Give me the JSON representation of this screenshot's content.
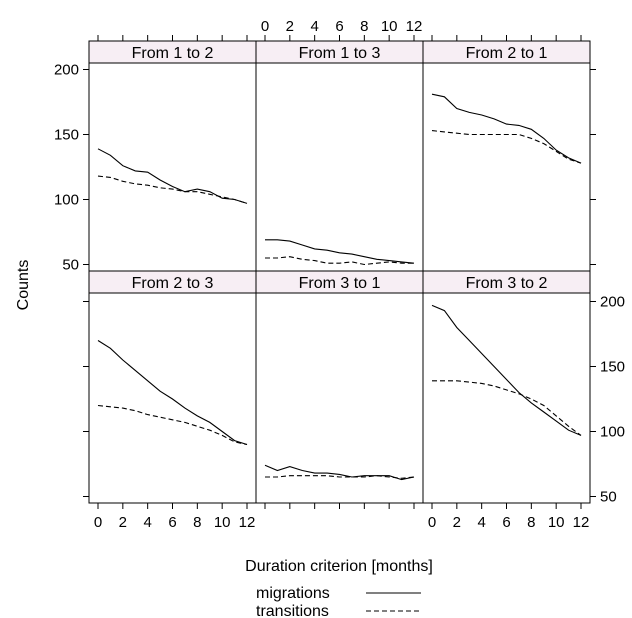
{
  "chart_data": {
    "type": "line",
    "layout": "3 columns x 2 rows lattice (trellis) plot",
    "xlabel": "Duration criterion [months]",
    "ylabel": "Counts",
    "xlim": [
      0,
      12
    ],
    "ylim": [
      45,
      205
    ],
    "x_ticks": [
      0,
      2,
      4,
      6,
      8,
      10,
      12
    ],
    "y_ticks": [
      50,
      100,
      150,
      200
    ],
    "grid": false,
    "legend": {
      "placement": "bottom-center",
      "entries": [
        {
          "name": "migrations",
          "line_style": "solid"
        },
        {
          "name": "transitions",
          "line_style": "dashed"
        }
      ]
    },
    "x": [
      0,
      1,
      2,
      3,
      4,
      5,
      6,
      7,
      8,
      9,
      10,
      11,
      12
    ],
    "panels": [
      {
        "title": "From 1 to 2",
        "series": [
          {
            "name": "migrations",
            "values": [
              139,
              134,
              126,
              122,
              121,
              115,
              110,
              106,
              108,
              106,
              101,
              100,
              97
            ]
          },
          {
            "name": "transitions",
            "values": [
              118,
              117,
              114,
              112,
              111,
              109,
              108,
              106,
              106,
              104,
              102,
              100,
              97
            ]
          }
        ]
      },
      {
        "title": "From 1 to 3",
        "series": [
          {
            "name": "migrations",
            "values": [
              69,
              69,
              68,
              65,
              62,
              61,
              59,
              58,
              56,
              54,
              53,
              52,
              51
            ]
          },
          {
            "name": "transitions",
            "values": [
              55,
              55,
              56,
              54,
              53,
              51,
              51,
              52,
              50,
              51,
              52,
              51,
              51
            ]
          }
        ]
      },
      {
        "title": "From 2 to 1",
        "series": [
          {
            "name": "migrations",
            "values": [
              181,
              179,
              170,
              167,
              165,
              162,
              158,
              157,
              154,
              147,
              138,
              132,
              128
            ]
          },
          {
            "name": "transitions",
            "values": [
              153,
              152,
              151,
              150,
              150,
              150,
              150,
              150,
              147,
              143,
              137,
              131,
              128
            ]
          }
        ]
      },
      {
        "title": "From 2 to 3",
        "series": [
          {
            "name": "migrations",
            "values": [
              170,
              164,
              155,
              147,
              139,
              131,
              125,
              118,
              112,
              107,
              100,
              93,
              90
            ]
          },
          {
            "name": "transitions",
            "values": [
              120,
              119,
              118,
              116,
              113,
              111,
              109,
              107,
              104,
              101,
              97,
              92,
              90
            ]
          }
        ]
      },
      {
        "title": "From 3 to 1",
        "series": [
          {
            "name": "migrations",
            "values": [
              74,
              70,
              73,
              70,
              68,
              68,
              67,
              65,
              66,
              66,
              66,
              63,
              65
            ]
          },
          {
            "name": "transitions",
            "values": [
              65,
              65,
              66,
              66,
              66,
              66,
              65,
              65,
              65,
              66,
              65,
              64,
              65
            ]
          }
        ]
      },
      {
        "title": "From 3 to 2",
        "series": [
          {
            "name": "migrations",
            "values": [
              197,
              193,
              180,
              170,
              160,
              150,
              140,
              130,
              122,
              115,
              108,
              101,
              97
            ]
          },
          {
            "name": "transitions",
            "values": [
              139,
              139,
              139,
              138,
              137,
              135,
              132,
              129,
              125,
              120,
              112,
              104,
              97
            ]
          }
        ]
      }
    ]
  }
}
